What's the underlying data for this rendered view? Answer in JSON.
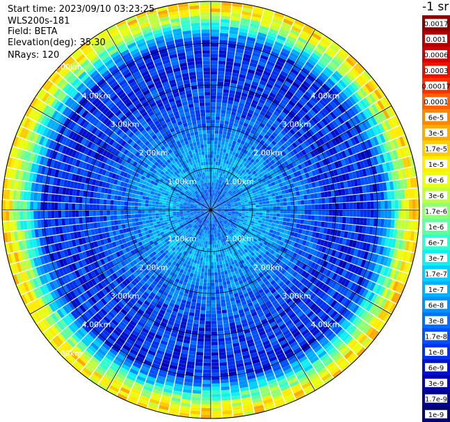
{
  "header": {
    "start_time": "Start time: 2023/09/10 03:23:25",
    "instrument": "WLS200s-181",
    "field": "Field: BETA",
    "elevation": "Elevation(deg): 35.30",
    "nrays": "NRays: 120"
  },
  "colorbar": {
    "unit_label": "-1 sr",
    "labels": [
      "0.0017",
      "0.001",
      "0.0006",
      "0.0003",
      "0.00017",
      "0.0001",
      "6e-5",
      "3e-5",
      "1.7e-5",
      "1e-5",
      "6e-6",
      "3e-6",
      "1.7e-6",
      "1e-6",
      "6e-7",
      "3e-7",
      "1.7e-7",
      "1e-7",
      "6e-8",
      "3e-8",
      "1.7e-8",
      "1e-8",
      "6e-9",
      "3e-9",
      "1.7e-9",
      "1e-9"
    ],
    "colors": [
      "#8b0000",
      "#b00000",
      "#d40000",
      "#f01000",
      "#ff3000",
      "#ff6000",
      "#ff8800",
      "#ffaa00",
      "#ffcc00",
      "#ffee00",
      "#e8ff10",
      "#c0ff40",
      "#90ff70",
      "#60ffa0",
      "#30ffd0",
      "#10f0f0",
      "#00d0ff",
      "#00b0ff",
      "#0090ff",
      "#0070ff",
      "#0050ff",
      "#0030f0",
      "#0010d0",
      "#0000b0",
      "#000090",
      "#000070"
    ]
  },
  "chart_data": {
    "type": "heatmap",
    "projection": "polar PPI",
    "field": "BETA",
    "n_rays": 120,
    "elevation_deg": 35.3,
    "range_max_km": 5.0,
    "range_rings_km": [
      1.0,
      2.0,
      3.0,
      4.0,
      5.0
    ],
    "ring_labels": [
      "1.00km",
      "2.00km",
      "3.00km",
      "4.00km",
      "5.00km"
    ],
    "radial_spokes_deg": [
      0,
      30,
      60,
      90,
      120,
      150,
      180,
      210,
      240,
      270,
      300,
      330
    ],
    "color_scale": "log",
    "value_range": [
      1e-09,
      0.0017
    ],
    "typical_value_by_range_km": [
      {
        "range_km": 0.5,
        "beta": 3e-08
      },
      {
        "range_km": 1.0,
        "beta": 1e-07
      },
      {
        "range_km": 2.0,
        "beta": 3e-08
      },
      {
        "range_km": 3.0,
        "beta": 1e-08
      },
      {
        "range_km": 4.0,
        "beta": 1e-08
      },
      {
        "range_km": 4.8,
        "beta": 1e-05
      }
    ]
  }
}
